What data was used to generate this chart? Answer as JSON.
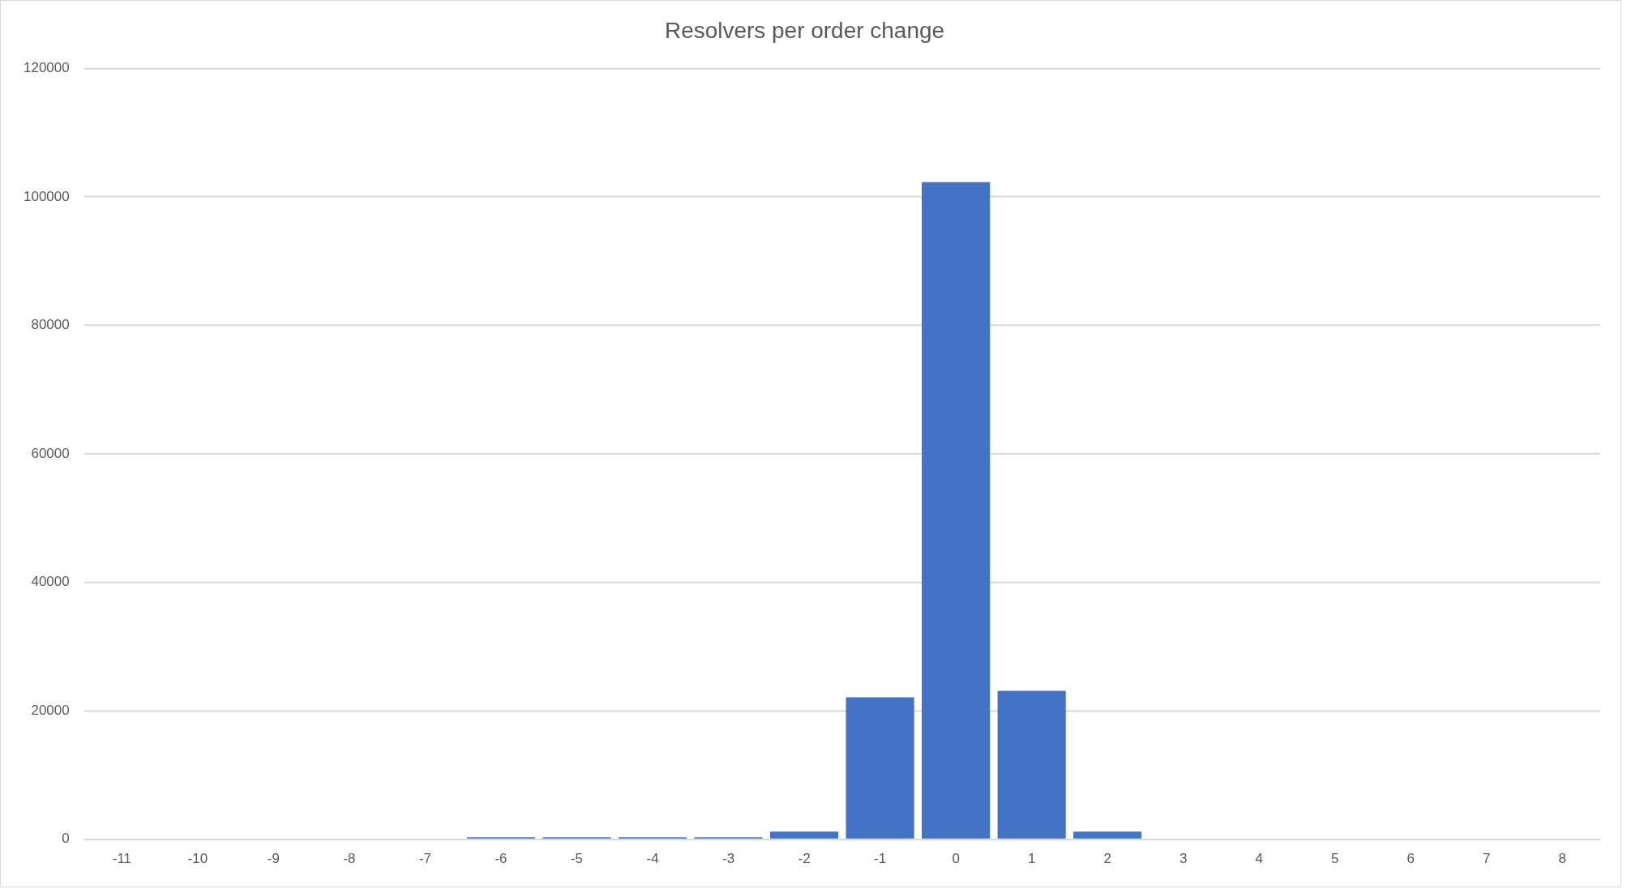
{
  "chart_data": {
    "type": "bar",
    "title": "Resolvers per order change",
    "categories": [
      "-11",
      "-10",
      "-9",
      "-8",
      "-7",
      "-6",
      "-5",
      "-4",
      "-3",
      "-2",
      "-1",
      "0",
      "1",
      "2",
      "3",
      "4",
      "5",
      "6",
      "7",
      "8"
    ],
    "values": [
      0,
      0,
      0,
      0,
      0,
      300,
      300,
      300,
      300,
      1200,
      22100,
      102300,
      23100,
      1200,
      0,
      0,
      0,
      0,
      0,
      0
    ],
    "color": "#4472c4",
    "ylim": [
      0,
      120000
    ],
    "yticks": [
      0,
      20000,
      40000,
      60000,
      80000,
      100000,
      120000
    ],
    "grid": "y",
    "legend": false
  }
}
